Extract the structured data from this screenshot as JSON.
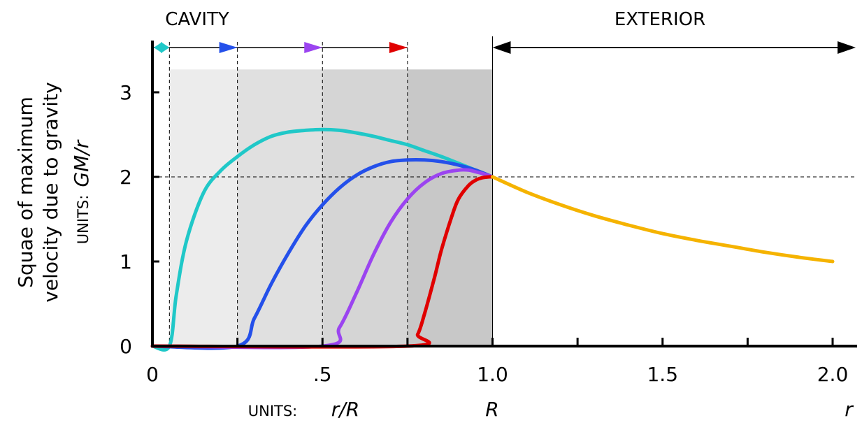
{
  "chart_data": {
    "type": "line",
    "title": "",
    "regions": {
      "cavity": "CAVITY",
      "exterior": "EXTERIOR"
    },
    "ylabel_line1": "Squae of maximum",
    "ylabel_line2": "velocity due to gravity",
    "y_units_prefix": "UNITS:",
    "y_units_value": "GM/r",
    "x_units_prefix": "UNITS:",
    "x_units_cavity": "r/R",
    "x_units_boundary": "R",
    "x_units_exterior": "r",
    "xlim": [
      0,
      2.0
    ],
    "ylim": [
      0,
      3.5
    ],
    "x_ticks": [
      0,
      0.25,
      0.5,
      0.75,
      1.0,
      1.25,
      1.5,
      1.75,
      2.0
    ],
    "x_tick_labels": [
      {
        "x": 0,
        "label": "0"
      },
      {
        "x": 0.5,
        "label": ".5"
      },
      {
        "x": 1.0,
        "label": "1.0"
      },
      {
        "x": 1.5,
        "label": "1.5"
      },
      {
        "x": 2.0,
        "label": "2.0"
      }
    ],
    "y_ticks": [
      {
        "y": 0,
        "label": "0"
      },
      {
        "y": 1,
        "label": "1"
      },
      {
        "y": 2,
        "label": "2"
      },
      {
        "y": 3,
        "label": "3"
      }
    ],
    "reference_line_y": 2,
    "shaded_bands": [
      {
        "from": 0.05,
        "to": 0.25,
        "top": 3.27,
        "color": "#ececec"
      },
      {
        "from": 0.25,
        "to": 0.5,
        "top": 3.27,
        "color": "#e0e0e0"
      },
      {
        "from": 0.5,
        "to": 0.75,
        "top": 3.27,
        "color": "#d5d5d5"
      },
      {
        "from": 0.75,
        "to": 1.0,
        "top": 3.27,
        "color": "#c8c8c8"
      }
    ],
    "cavity_markers": [
      0.05,
      0.25,
      0.5,
      0.75
    ],
    "series": [
      {
        "color": "#20c8c8",
        "x": [
          0.0,
          0.05,
          0.07,
          0.1,
          0.15,
          0.2,
          0.25,
          0.3,
          0.35,
          0.4,
          0.45,
          0.5,
          0.55,
          0.6,
          0.65,
          0.7,
          0.75,
          0.8,
          0.85,
          0.9,
          0.95,
          1.0
        ],
        "y": [
          0.0,
          0.0,
          0.6,
          1.24,
          1.81,
          2.07,
          2.24,
          2.38,
          2.48,
          2.53,
          2.55,
          2.56,
          2.55,
          2.52,
          2.48,
          2.43,
          2.38,
          2.31,
          2.24,
          2.16,
          2.08,
          2.0
        ]
      },
      {
        "color": "#2450ea",
        "x": [
          0.0,
          0.25,
          0.3,
          0.35,
          0.4,
          0.45,
          0.5,
          0.55,
          0.6,
          0.65,
          0.7,
          0.75,
          0.8,
          0.85,
          0.9,
          0.95,
          1.0
        ],
        "y": [
          0.0,
          0.0,
          0.33,
          0.74,
          1.1,
          1.42,
          1.67,
          1.87,
          2.02,
          2.12,
          2.18,
          2.2,
          2.2,
          2.18,
          2.14,
          2.08,
          2.0
        ]
      },
      {
        "color": "#9b44f0",
        "x": [
          0.0,
          0.5,
          0.55,
          0.6,
          0.65,
          0.7,
          0.75,
          0.8,
          0.85,
          0.9,
          0.93,
          0.95,
          0.97,
          1.0
        ],
        "y": [
          0.0,
          0.0,
          0.22,
          0.63,
          1.08,
          1.46,
          1.74,
          1.93,
          2.04,
          2.08,
          2.08,
          2.06,
          2.04,
          2.0
        ]
      },
      {
        "color": "#e00000",
        "x": [
          0.0,
          0.75,
          0.78,
          0.8,
          0.83,
          0.85,
          0.88,
          0.9,
          0.93,
          0.95,
          0.97,
          0.99,
          1.0
        ],
        "y": [
          0.0,
          0.0,
          0.14,
          0.38,
          0.82,
          1.14,
          1.53,
          1.74,
          1.9,
          1.96,
          1.99,
          2.0,
          2.0
        ]
      },
      {
        "color": "#f5b300",
        "x": [
          1.0,
          1.1,
          1.2,
          1.3,
          1.4,
          1.5,
          1.6,
          1.7,
          1.8,
          1.9,
          2.0
        ],
        "y": [
          2.0,
          1.82,
          1.67,
          1.54,
          1.43,
          1.33,
          1.25,
          1.18,
          1.11,
          1.05,
          1.0
        ]
      }
    ]
  }
}
